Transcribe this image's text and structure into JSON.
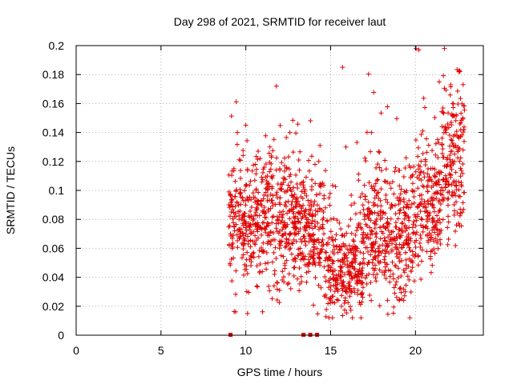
{
  "chart_data": {
    "type": "scatter",
    "title": "Day 298 of 2021, SRMTID for receiver laut",
    "xlabel": "GPS time / hours",
    "ylabel": "SRMTID / TECUs",
    "xlim": [
      0,
      24
    ],
    "ylim": [
      0,
      0.2
    ],
    "x_ticks": [
      0,
      5,
      10,
      15,
      20
    ],
    "x_tick_labels": [
      "0",
      "5",
      "10",
      "15",
      "20"
    ],
    "y_ticks": [
      0,
      0.02,
      0.04,
      0.06,
      0.08,
      0.1,
      0.12,
      0.14,
      0.16,
      0.18,
      0.2
    ],
    "y_tick_labels": [
      "0",
      "0.02",
      "0.04",
      "0.06",
      "0.08",
      "0.1",
      "0.12",
      "0.14",
      "0.16",
      "0.18",
      "0.2"
    ],
    "grid": true,
    "marker": "+",
    "marker_color": "#e00000",
    "zero_markers_x": [
      9.1,
      13.4,
      13.8,
      14.2
    ],
    "sample_points": [
      [
        9.0,
        0.09
      ],
      [
        9.2,
        0.06
      ],
      [
        9.3,
        0.115
      ],
      [
        9.5,
        0.14
      ],
      [
        9.6,
        0.08
      ],
      [
        9.8,
        0.095
      ],
      [
        10.0,
        0.145
      ],
      [
        10.1,
        0.015
      ],
      [
        10.3,
        0.07
      ],
      [
        10.6,
        0.1
      ],
      [
        11.0,
        0.085
      ],
      [
        11.3,
        0.05
      ],
      [
        11.6,
        0.11
      ],
      [
        11.8,
        0.172
      ],
      [
        12.0,
        0.065
      ],
      [
        12.3,
        0.09
      ],
      [
        12.6,
        0.14
      ],
      [
        12.9,
        0.075
      ],
      [
        13.2,
        0.06
      ],
      [
        13.6,
        0.08
      ],
      [
        14.0,
        0.05
      ],
      [
        14.3,
        0.12
      ],
      [
        14.6,
        0.07
      ],
      [
        15.0,
        0.045
      ],
      [
        15.4,
        0.035
      ],
      [
        15.7,
        0.185
      ],
      [
        15.9,
        0.13
      ],
      [
        16.2,
        0.03
      ],
      [
        16.6,
        0.04
      ],
      [
        17.0,
        0.08
      ],
      [
        17.4,
        0.14
      ],
      [
        17.8,
        0.06
      ],
      [
        18.2,
        0.05
      ],
      [
        18.6,
        0.09
      ],
      [
        19.0,
        0.07
      ],
      [
        19.4,
        0.03
      ],
      [
        19.8,
        0.1
      ],
      [
        20.2,
        0.197
      ],
      [
        20.6,
        0.12
      ],
      [
        21.0,
        0.09
      ],
      [
        21.4,
        0.175
      ],
      [
        21.8,
        0.14
      ],
      [
        22.2,
        0.16
      ],
      [
        22.6,
        0.12
      ],
      [
        22.8,
        0.15
      ]
    ]
  }
}
